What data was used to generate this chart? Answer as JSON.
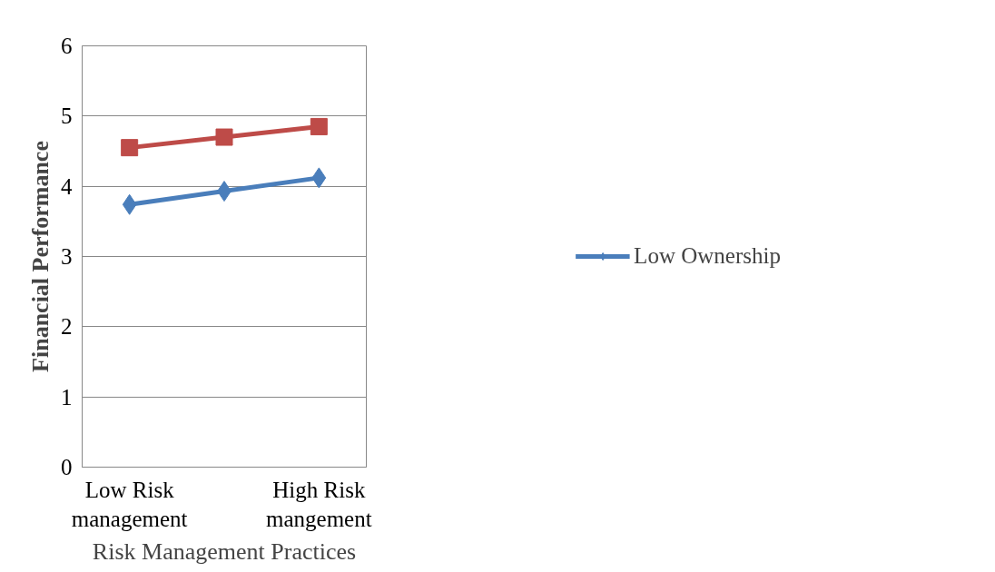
{
  "chart_data": {
    "type": "line",
    "xlabel": "Risk Management Practices",
    "ylabel": "Financial Performance",
    "categories": [
      "Low Risk\nmanagement",
      null,
      "High Risk\nmangement"
    ],
    "series": [
      {
        "name": "Low Ownership",
        "color": "#4a7ebb",
        "marker": "diamond",
        "values": [
          3.74,
          3.93,
          4.12
        ]
      },
      {
        "color": "#be4b48",
        "marker": "square",
        "values": [
          4.55,
          4.7,
          4.85
        ]
      }
    ],
    "ylim": [
      0,
      6
    ],
    "yticks": [
      0,
      1,
      2,
      3,
      4,
      5,
      6
    ],
    "grid": "y",
    "legend": "right"
  }
}
